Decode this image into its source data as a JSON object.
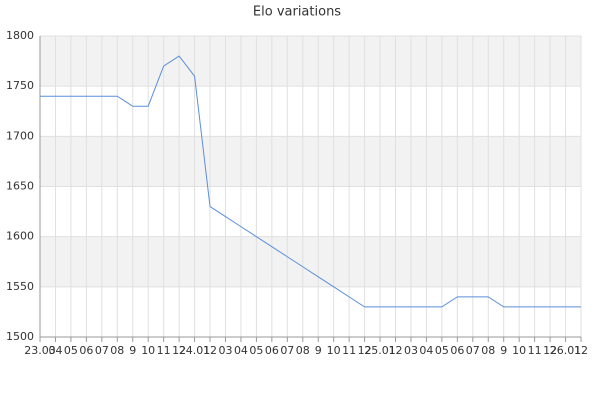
{
  "chart_data": {
    "type": "line",
    "title": "Elo variations",
    "categories": [
      "23.03",
      "04",
      "05",
      "06",
      "07",
      "08",
      "9",
      "10",
      "11",
      "12",
      "24.01",
      "12",
      "03",
      "04",
      "05",
      "06",
      "07",
      "08",
      "9",
      "10",
      "11",
      "12",
      "25.01",
      "12",
      "03",
      "04",
      "05",
      "06",
      "07",
      "08",
      "9",
      "10",
      "11",
      "12",
      "26.01",
      "12"
    ],
    "series": [
      {
        "name": "Elo",
        "color": "#5b8fd9",
        "values": [
          1740,
          1740,
          1740,
          1740,
          1740,
          1740,
          1730,
          1730,
          1770,
          1780,
          1760,
          1630,
          1620,
          1610,
          1600,
          1590,
          1580,
          1570,
          1560,
          1550,
          1540,
          1530,
          1530,
          1530,
          1530,
          1530,
          1530,
          1540,
          1540,
          1540,
          1530,
          1530,
          1530,
          1530,
          1530,
          1530
        ]
      }
    ],
    "ylim": [
      1500,
      1800
    ],
    "yticks": [
      1500,
      1550,
      1600,
      1650,
      1700,
      1750,
      1800
    ],
    "grid": true
  }
}
